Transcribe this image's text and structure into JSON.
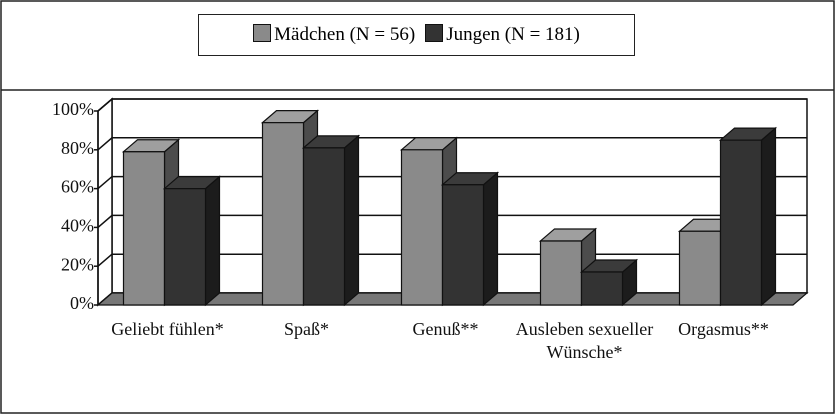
{
  "chart_data": {
    "type": "bar3d",
    "categories": [
      "Geliebt fühlen*",
      "Spaß*",
      "Genuß**",
      "Ausleben sexueller Wünsche*",
      "Orgasmus**"
    ],
    "series": [
      {
        "name": "Mädchen (N = 56)",
        "color": "#8a8a8a",
        "values": [
          79,
          94,
          80,
          33,
          38
        ]
      },
      {
        "name": "Jungen (N = 181)",
        "color": "#333333",
        "values": [
          60,
          81,
          62,
          17,
          85
        ]
      }
    ],
    "ylim": [
      0,
      100
    ],
    "yticks": [
      {
        "value": 0,
        "label": "0%"
      },
      {
        "value": 20,
        "label": "20%"
      },
      {
        "value": 40,
        "label": "40%"
      },
      {
        "value": 60,
        "label": "60%"
      },
      {
        "value": 80,
        "label": "80%"
      },
      {
        "value": 100,
        "label": "100%"
      }
    ],
    "grid": true
  }
}
